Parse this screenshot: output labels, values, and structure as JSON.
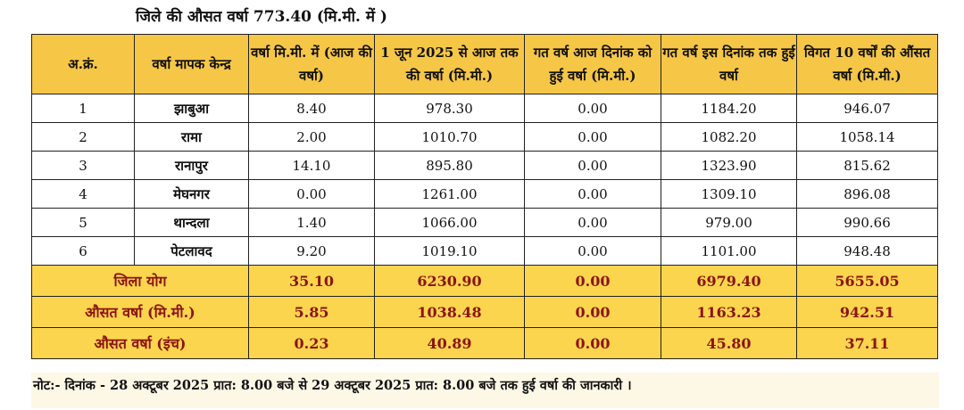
{
  "title": "जिले की औसत वर्षा 773.40 (मि.मी. में )",
  "headers": [
    "अ.क्रं.",
    "वर्षा मापक केन्द्र",
    "वर्षा मि.मी. में (आज की वर्षा)",
    "1 जून 2025 से आज तक की वर्षा (मि.मी.)",
    "गत वर्ष आज दिनांक को हुई वर्षा (मि.मी.)",
    "गत वर्ष इस दिनांक तक हुई वर्षा",
    "विगत 10 वर्षों  की औंसत वर्षा (मि.मी.)"
  ],
  "rows": [
    [
      "1",
      "झाबुआ",
      "8.40",
      "978.30",
      "0.00",
      "1184.20",
      "946.07"
    ],
    [
      "2",
      "रामा",
      "2.00",
      "1010.70",
      "0.00",
      "1082.20",
      "1058.14"
    ],
    [
      "3",
      "रानापुर",
      "14.10",
      "895.80",
      "0.00",
      "1323.90",
      "815.62"
    ],
    [
      "4",
      "मेघनगर",
      "0.00",
      "1261.00",
      "0.00",
      "1309.10",
      "896.08"
    ],
    [
      "5",
      "थान्दला",
      "1.40",
      "1066.00",
      "0.00",
      "979.00",
      "990.66"
    ],
    [
      "6",
      "पेटलावद",
      "9.20",
      "1019.10",
      "0.00",
      "1101.00",
      "948.48"
    ]
  ],
  "summary": [
    [
      "जिला योग",
      "35.10",
      "6230.90",
      "0.00",
      "6979.40",
      "5655.05"
    ],
    [
      "औसत वर्षा (मि.मी.)",
      "5.85",
      "1038.48",
      "0.00",
      "1163.23",
      "942.51"
    ],
    [
      "औसत वर्षा (इंच)",
      "0.23",
      "40.89",
      "0.00",
      "45.80",
      "37.11"
    ]
  ],
  "note": "नोट:-  दिनांक - 28 अक्टूबर 2025 प्रात: 8.00 बजे से  29 अक्टूबर 2025 प्रात: 8.00 बजे तक हुई वर्षा की जानकारी ।"
}
